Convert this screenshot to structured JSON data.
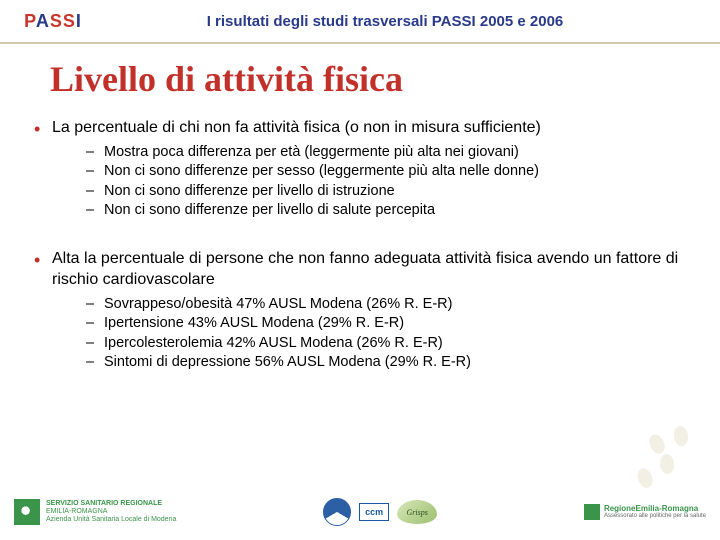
{
  "header": {
    "logo_text": "PASSI",
    "title": "I risultati degli studi trasversali  PASSI 2005 e 2006"
  },
  "slide": {
    "title": "Livello di attività fisica",
    "bullets": [
      {
        "text": "La percentuale di chi non fa attività fisica (o non in misura sufficiente)",
        "sub": [
          "Mostra poca differenza per età (leggermente più alta nei giovani)",
          "Non ci sono differenze per sesso (leggermente più alta nelle donne)",
          "Non ci sono differenze per livello di istruzione",
          "Non ci sono differenze per livello di salute percepita"
        ]
      },
      {
        "text": "Alta la percentuale di persone che non fanno adeguata attività fisica avendo un fattore di rischio cardiovascolare",
        "sub": [
          "Sovrappeso/obesità 47% AUSL Modena (26% R. E-R)",
          "Ipertensione 43% AUSL Modena (29% R. E-R)",
          "Ipercolesterolemia 42% AUSL Modena (26% R. E-R)",
          "Sintomi di depressione 56% AUSL Modena (29% R. E-R)"
        ]
      }
    ]
  },
  "footer": {
    "ssr_line1": "SERVIZIO SANITARIO REGIONALE",
    "ssr_line2": "EMILIA-ROMAGNA",
    "ssr_line3": "Azienda Unità Sanitaria Locale di Modena",
    "ccm": "ccm",
    "grisps": "Grisps",
    "rer_line1": "RegioneEmilia-Romagna",
    "rer_line2": "Assessorato alle politiche per la salute"
  },
  "colors": {
    "accent_red": "#c2302a",
    "accent_blue": "#2a3a8a",
    "footer_green": "#3a944a",
    "divider": "#d4c9a8"
  }
}
